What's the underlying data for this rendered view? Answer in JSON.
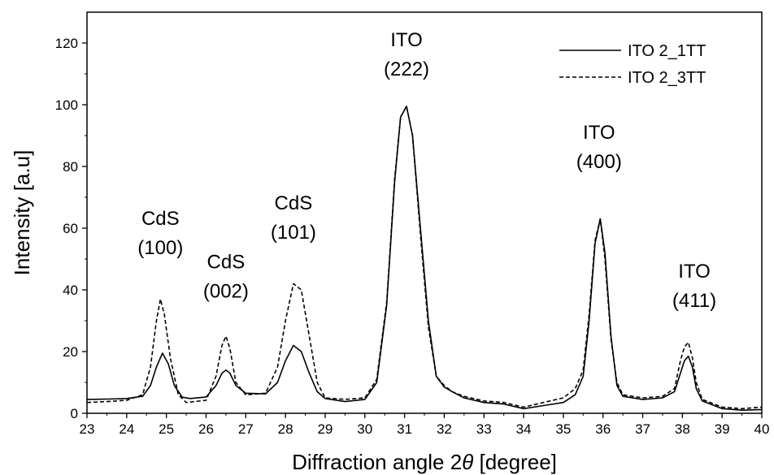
{
  "chart_data": {
    "type": "line",
    "xlabel_main": "Diffraction angle 2",
    "xlabel_symbol": "θ",
    "xlabel_unit": " [degree]",
    "ylabel": "Intensity [a.u]",
    "xlim": [
      23,
      40
    ],
    "ylim": [
      0,
      130
    ],
    "xticks": [
      "23",
      "24",
      "25",
      "26",
      "27",
      "28",
      "29",
      "30",
      "31",
      "32",
      "33",
      "34",
      "35",
      "36",
      "37",
      "38",
      "39",
      "40"
    ],
    "yticks": [
      "0",
      "20",
      "40",
      "60",
      "80",
      "100",
      "120"
    ],
    "grid": false,
    "legend_position": "top-right",
    "series": [
      {
        "name": "ITO 2_1TT",
        "dash": "solid",
        "color": "#000000",
        "x": [
          23.0,
          23.5,
          24.0,
          24.4,
          24.6,
          24.75,
          24.9,
          25.05,
          25.2,
          25.4,
          25.6,
          26.0,
          26.25,
          26.4,
          26.5,
          26.6,
          26.75,
          27.0,
          27.5,
          27.8,
          28.0,
          28.2,
          28.4,
          28.6,
          28.8,
          29.0,
          29.5,
          30.0,
          30.3,
          30.55,
          30.75,
          30.9,
          31.05,
          31.2,
          31.4,
          31.6,
          31.8,
          32.0,
          32.2,
          32.5,
          33.0,
          33.5,
          34.0,
          34.5,
          35.0,
          35.3,
          35.5,
          35.65,
          35.8,
          35.93,
          36.05,
          36.2,
          36.35,
          36.5,
          37.0,
          37.5,
          37.8,
          37.95,
          38.05,
          38.15,
          38.25,
          38.35,
          38.5,
          39.0,
          39.5,
          40.0
        ],
        "values": [
          4.5,
          4.6,
          4.8,
          5.5,
          9,
          15,
          19.5,
          16,
          9,
          5.2,
          4.8,
          5.3,
          9,
          13,
          14,
          13,
          9,
          6.5,
          6.3,
          10,
          17,
          22,
          20,
          13,
          7,
          4.8,
          3.8,
          4.5,
          10,
          35,
          75,
          96,
          99.5,
          90,
          60,
          30,
          12,
          8.5,
          7,
          5,
          3.5,
          3,
          1.5,
          2.5,
          3.5,
          6,
          12,
          30,
          55,
          63,
          52,
          25,
          9,
          5.5,
          4.5,
          5,
          7,
          13,
          17,
          18.5,
          15,
          8,
          4,
          1.5,
          1,
          1.2
        ]
      },
      {
        "name": "ITO 2_3TT",
        "dash": "dashed",
        "color": "#000000",
        "x": [
          23.0,
          23.5,
          24.0,
          24.4,
          24.6,
          24.75,
          24.85,
          24.95,
          25.1,
          25.3,
          25.5,
          26.0,
          26.25,
          26.4,
          26.5,
          26.6,
          26.75,
          27.0,
          27.5,
          27.8,
          28.0,
          28.2,
          28.4,
          28.6,
          28.8,
          29.0,
          29.5,
          30.0,
          30.3,
          30.55,
          30.75,
          30.9,
          31.05,
          31.2,
          31.4,
          31.6,
          31.8,
          32.0,
          32.2,
          32.5,
          33.0,
          33.5,
          34.0,
          34.5,
          35.0,
          35.3,
          35.5,
          35.65,
          35.8,
          35.93,
          36.05,
          36.2,
          36.35,
          36.5,
          37.0,
          37.5,
          37.8,
          37.95,
          38.05,
          38.15,
          38.25,
          38.35,
          38.5,
          39.0,
          39.5,
          40.0
        ],
        "values": [
          3.5,
          3.8,
          4.2,
          6,
          15,
          30,
          37,
          32,
          18,
          6,
          3.5,
          4.2,
          12,
          22,
          25,
          21,
          10,
          6,
          6.5,
          15,
          30,
          42,
          40,
          25,
          10,
          5,
          4.5,
          5,
          11,
          36,
          76,
          96,
          99.5,
          90,
          58,
          28,
          12,
          9,
          7,
          5.5,
          4,
          3.5,
          2,
          3.5,
          5,
          8,
          14,
          32,
          56,
          63,
          50,
          24,
          10,
          6,
          5,
          5.5,
          8,
          17,
          21.5,
          23,
          18,
          10,
          4.5,
          2,
          1.5,
          2
        ]
      }
    ],
    "annotations": [
      {
        "lines": [
          "CdS",
          "(100)"
        ],
        "x": 24.85,
        "y": 61
      },
      {
        "lines": [
          "CdS",
          "(002)"
        ],
        "x": 26.5,
        "y": 47
      },
      {
        "lines": [
          "CdS",
          "(101)"
        ],
        "x": 28.2,
        "y": 66
      },
      {
        "lines": [
          "ITO",
          "(222)"
        ],
        "x": 31.05,
        "y": 119
      },
      {
        "lines": [
          "ITO",
          "(400)"
        ],
        "x": 35.9,
        "y": 89
      },
      {
        "lines": [
          "ITO",
          "(411)"
        ],
        "x": 38.3,
        "y": 44
      }
    ]
  }
}
